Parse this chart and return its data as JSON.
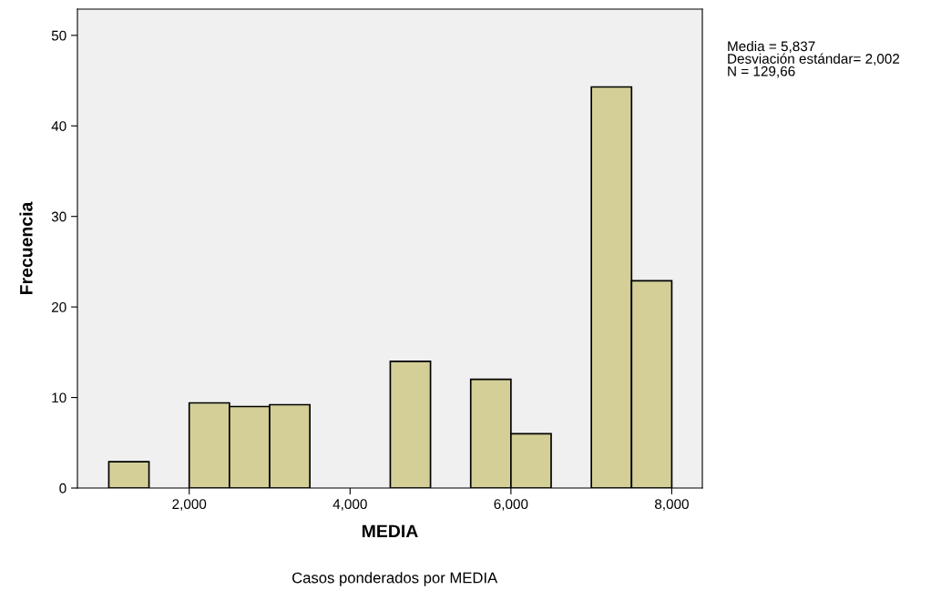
{
  "chart_data": {
    "type": "histogram",
    "xlabel": "MEDIA",
    "ylabel": "Frecuencia",
    "bins": [
      1000,
      1500,
      2000,
      2500,
      3000,
      3500,
      4000,
      4500,
      5000,
      5500,
      6000,
      6500,
      7000,
      7500,
      8000
    ],
    "values": [
      2.9,
      0,
      9.4,
      9.0,
      9.2,
      0,
      0,
      14.0,
      0,
      12.0,
      6.0,
      0,
      44.3,
      22.9
    ],
    "color": "#d3cf97",
    "xlim": [
      610,
      8380
    ],
    "xticks": [
      {
        "value": 2000,
        "label": "2,000"
      },
      {
        "value": 4000,
        "label": "4,000"
      },
      {
        "value": 6000,
        "label": "6,000"
      },
      {
        "value": 8000,
        "label": "8,000"
      }
    ],
    "ylim": [
      0,
      52.9
    ],
    "yticks": [
      0,
      10,
      20,
      30,
      40,
      50
    ],
    "grid": false,
    "annotations": [
      "Media = 5,837\nDesviación estándar= 2,002\nN = 129,66",
      "Casos ponderados por MEDIA"
    ]
  }
}
